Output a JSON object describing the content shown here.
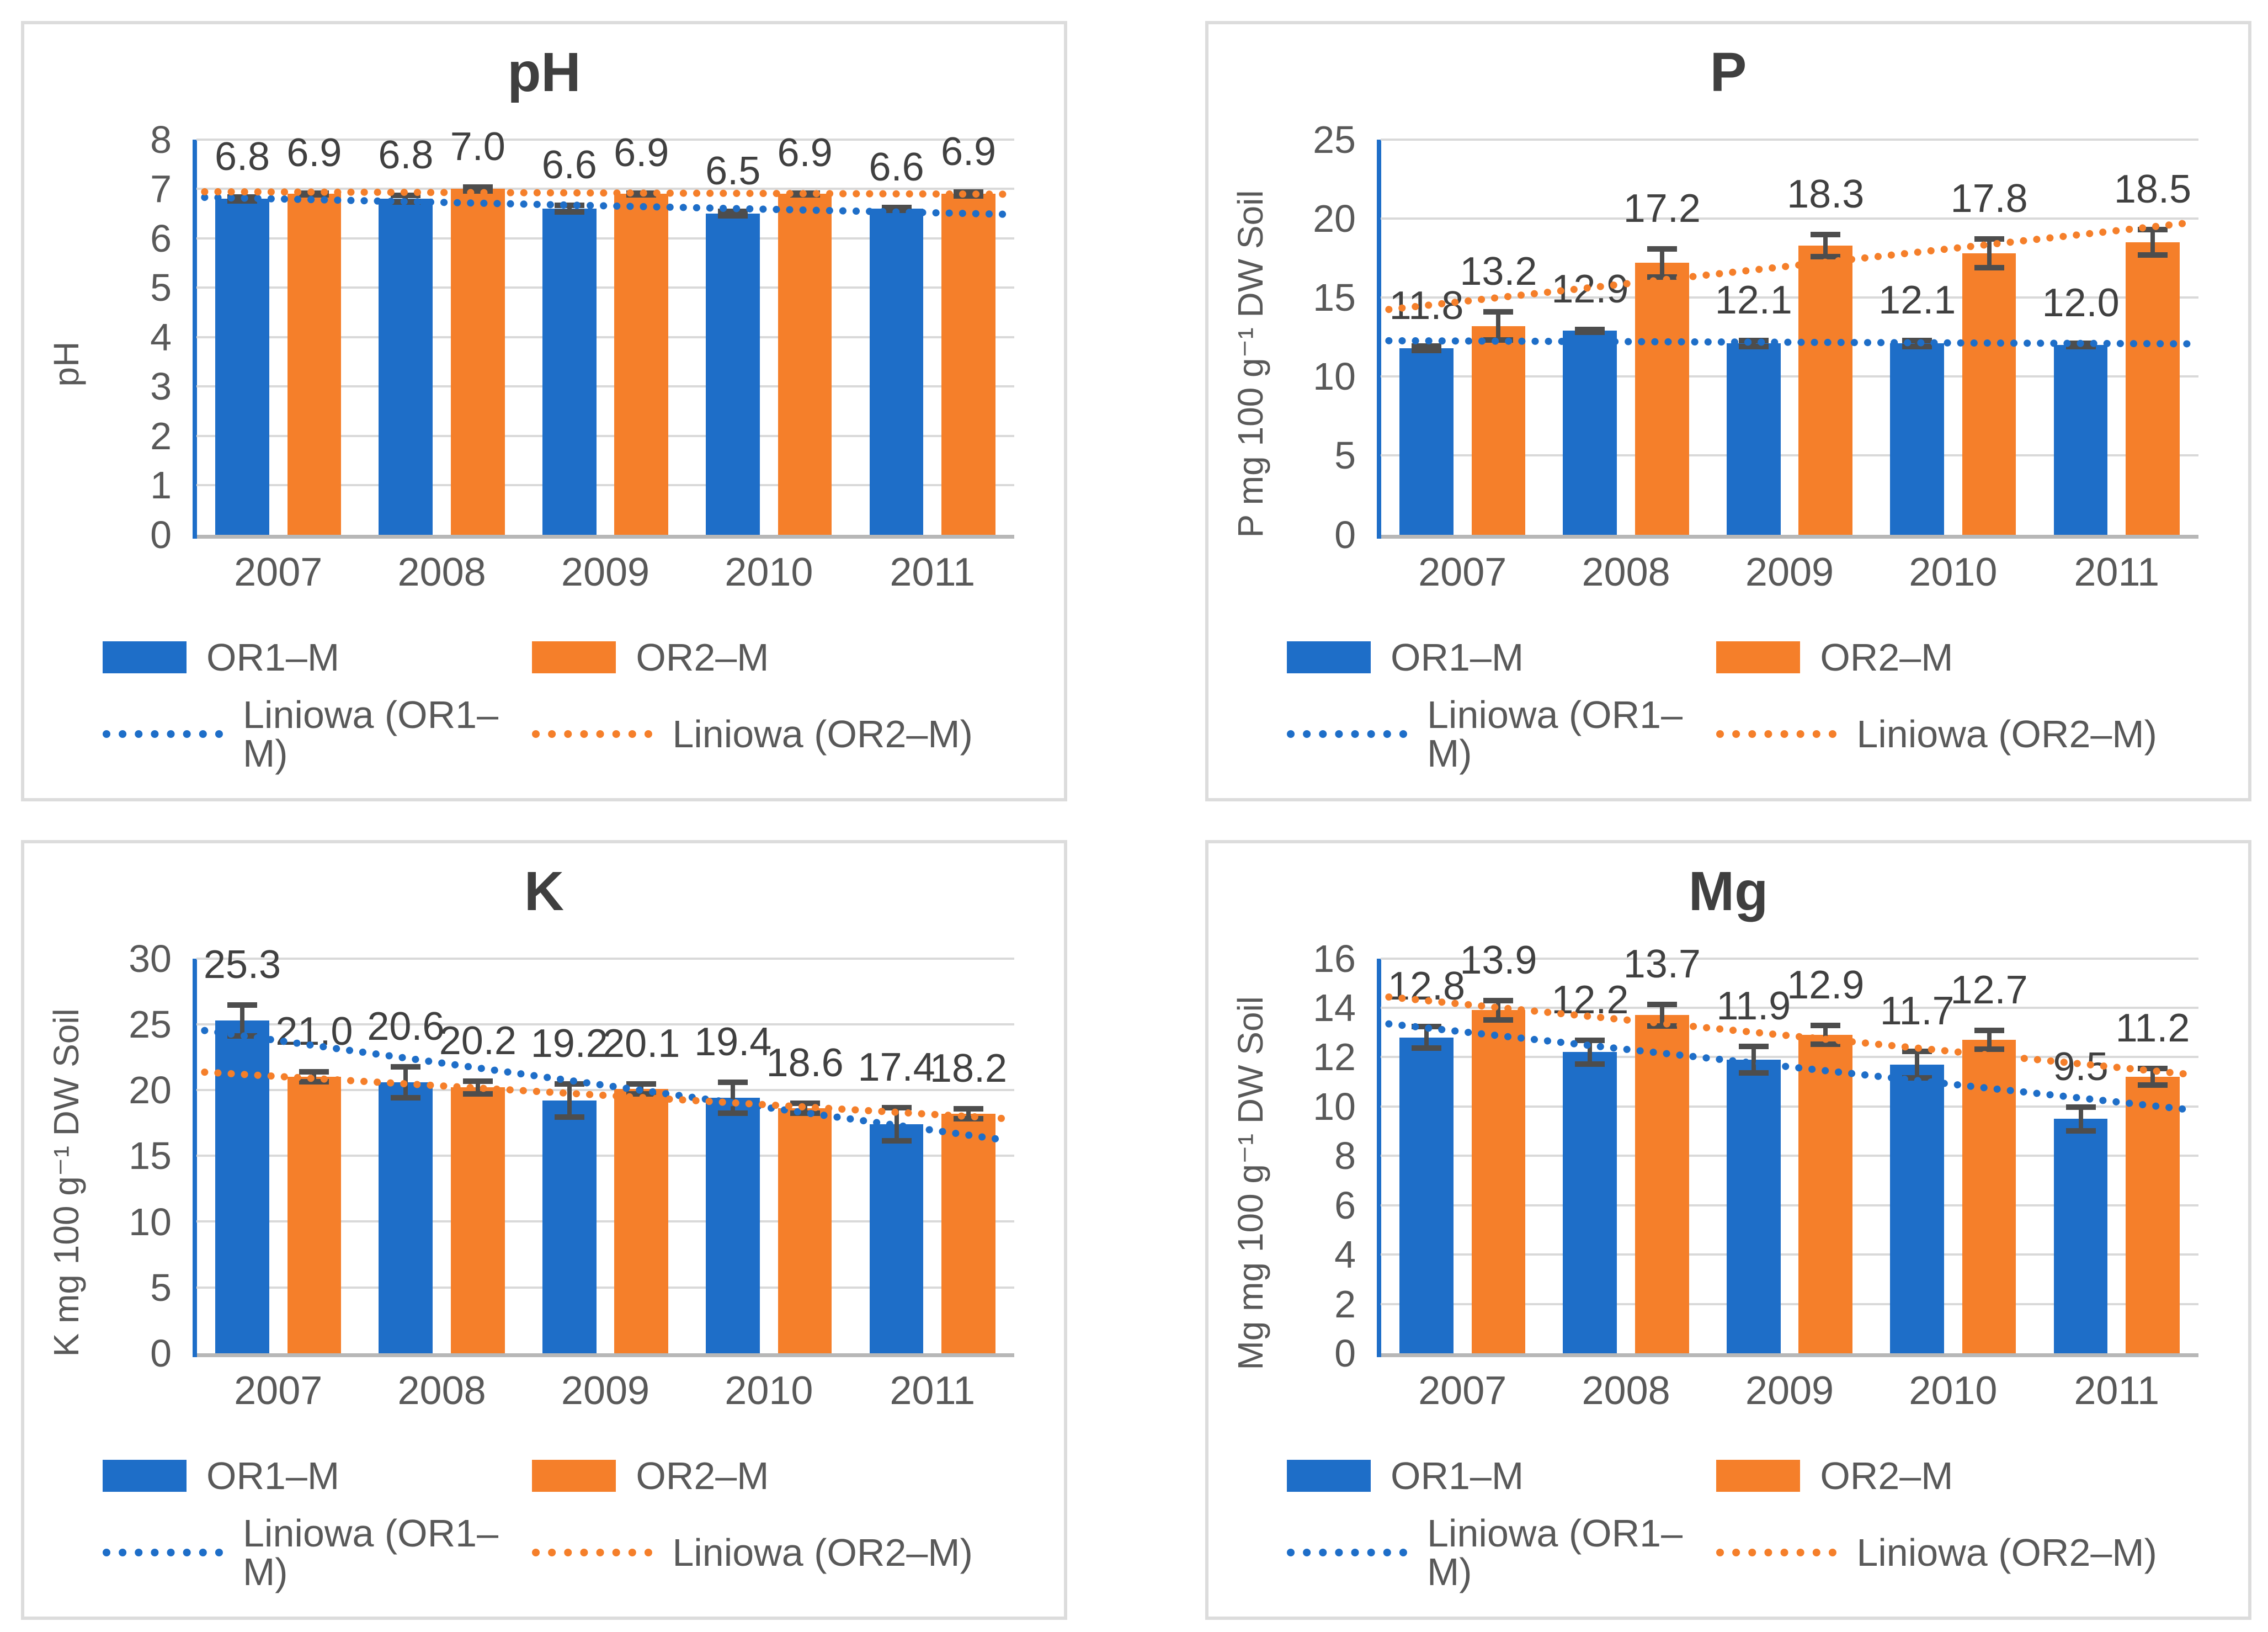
{
  "colors": {
    "or1_blue": "#1e6ec8",
    "or2_orange": "#f57f2a",
    "gridline": "#d9d9d9",
    "axis_gray": "#b7b7b7",
    "tick_text": "#595959",
    "value_label_text": "#404040",
    "error_bar": "#4d4d4d",
    "panel_border": "#dcdcdc"
  },
  "chart_data": [
    {
      "type": "bar",
      "title": "pH",
      "ylabel": "pH",
      "categories": [
        "2007",
        "2008",
        "2009",
        "2010",
        "2011"
      ],
      "ylim": [
        0,
        8
      ],
      "ystep": 1,
      "grid": true,
      "legend_position": "bottom",
      "label_decimals": 1,
      "series": [
        {
          "name": "OR1–M",
          "color": "#1e6ec8",
          "values": [
            6.8,
            6.8,
            6.6,
            6.5,
            6.6
          ],
          "errors": [
            0.07,
            0.1,
            0.1,
            0.08,
            0.06
          ]
        },
        {
          "name": "OR2–M",
          "color": "#f57f2a",
          "values": [
            6.9,
            7.0,
            6.9,
            6.9,
            6.9
          ],
          "errors": [
            0.05,
            0.07,
            0.05,
            0.05,
            0.07
          ]
        }
      ],
      "trendlines": [
        {
          "label": "Liniowa (OR1–M)",
          "series": 0,
          "style": "dotted"
        },
        {
          "label": "Liniowa (OR2–M)",
          "series": 1,
          "style": "dotted"
        }
      ]
    },
    {
      "type": "bar",
      "title": "P",
      "ylabel": "P mg 100 g⁻¹ DW Soil",
      "categories": [
        "2007",
        "2008",
        "2009",
        "2010",
        "2011"
      ],
      "ylim": [
        0,
        25
      ],
      "ystep": 5,
      "grid": true,
      "legend_position": "bottom",
      "label_decimals": 1,
      "series": [
        {
          "name": "OR1–M",
          "color": "#1e6ec8",
          "values": [
            11.8,
            12.9,
            12.1,
            12.1,
            12.0
          ],
          "errors": [
            0.25,
            0.2,
            0.3,
            0.3,
            0.2
          ]
        },
        {
          "name": "OR2–M",
          "color": "#f57f2a",
          "values": [
            13.2,
            17.2,
            18.3,
            17.8,
            18.5
          ],
          "errors": [
            1.0,
            1.0,
            0.8,
            1.0,
            0.9
          ]
        }
      ],
      "trendlines": [
        {
          "label": "Liniowa (OR1–M)",
          "series": 0,
          "style": "dotted"
        },
        {
          "label": "Liniowa (OR2–M)",
          "series": 1,
          "style": "dotted"
        }
      ]
    },
    {
      "type": "bar",
      "title": "K",
      "ylabel": "K mg 100 g⁻¹ DW Soil",
      "categories": [
        "2007",
        "2008",
        "2009",
        "2010",
        "2011"
      ],
      "ylim": [
        0,
        30
      ],
      "ystep": 5,
      "grid": true,
      "legend_position": "bottom",
      "label_decimals": 1,
      "series": [
        {
          "name": "OR1–M",
          "color": "#1e6ec8",
          "values": [
            25.3,
            20.6,
            19.2,
            19.4,
            17.4
          ],
          "errors": [
            1.3,
            1.3,
            1.4,
            1.3,
            1.4
          ]
        },
        {
          "name": "OR2–M",
          "color": "#f57f2a",
          "values": [
            21.0,
            20.2,
            20.1,
            18.6,
            18.2
          ],
          "errors": [
            0.5,
            0.6,
            0.5,
            0.5,
            0.5
          ]
        }
      ],
      "trendlines": [
        {
          "label": "Liniowa (OR1–M)",
          "series": 0,
          "style": "dotted"
        },
        {
          "label": "Liniowa (OR2–M)",
          "series": 1,
          "style": "dotted"
        }
      ]
    },
    {
      "type": "bar",
      "title": "Mg",
      "ylabel": "Mg mg 100 g⁻¹ DW Soil",
      "categories": [
        "2007",
        "2008",
        "2009",
        "2010",
        "2011"
      ],
      "ylim": [
        0,
        16
      ],
      "ystep": 2,
      "grid": true,
      "legend_position": "bottom",
      "label_decimals": 1,
      "series": [
        {
          "name": "OR1–M",
          "color": "#1e6ec8",
          "values": [
            12.8,
            12.2,
            11.9,
            11.7,
            9.5
          ],
          "errors": [
            0.5,
            0.55,
            0.6,
            0.6,
            0.55
          ]
        },
        {
          "name": "OR2–M",
          "color": "#f57f2a",
          "values": [
            13.9,
            13.7,
            12.9,
            12.7,
            11.2
          ],
          "errors": [
            0.45,
            0.5,
            0.45,
            0.45,
            0.4
          ]
        }
      ],
      "trendlines": [
        {
          "label": "Liniowa (OR1–M)",
          "series": 0,
          "style": "dotted"
        },
        {
          "label": "Liniowa (OR2–M)",
          "series": 1,
          "style": "dotted"
        }
      ]
    }
  ]
}
